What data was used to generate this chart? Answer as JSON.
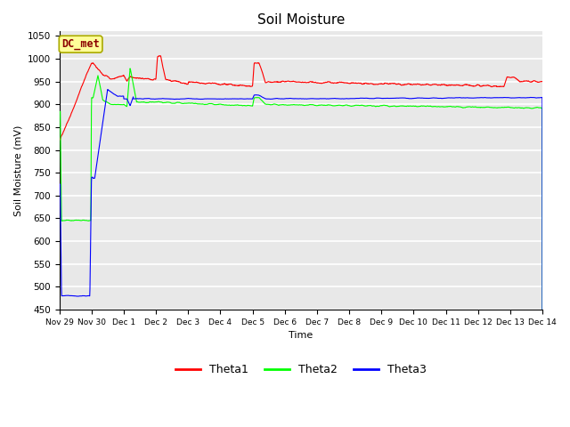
{
  "title": "Soil Moisture",
  "xlabel": "Time",
  "ylabel": "Soil Moisture (mV)",
  "ylim": [
    450,
    1060
  ],
  "yticks": [
    450,
    500,
    550,
    600,
    650,
    700,
    750,
    800,
    850,
    900,
    950,
    1000,
    1050
  ],
  "annotation_text": "DC_met",
  "annotation_color": "#8B0000",
  "annotation_bg": "#FFFF99",
  "annotation_border": "#AAAA00",
  "bg_color": "#E8E8E8",
  "grid_color": "white",
  "series": [
    "Theta1",
    "Theta2",
    "Theta3"
  ],
  "colors": [
    "red",
    "lime",
    "blue"
  ],
  "xtick_labels": [
    "Nov 29",
    "Nov 30",
    "Dec 1",
    "Dec 2",
    "Dec 3",
    "Dec 4",
    "Dec 5",
    "Dec 6",
    "Dec 7",
    "Dec 8",
    "Dec 9",
    "Dec 10",
    "Dec 11",
    "Dec 12",
    "Dec 13",
    "Dec 14"
  ],
  "num_points": 2000
}
